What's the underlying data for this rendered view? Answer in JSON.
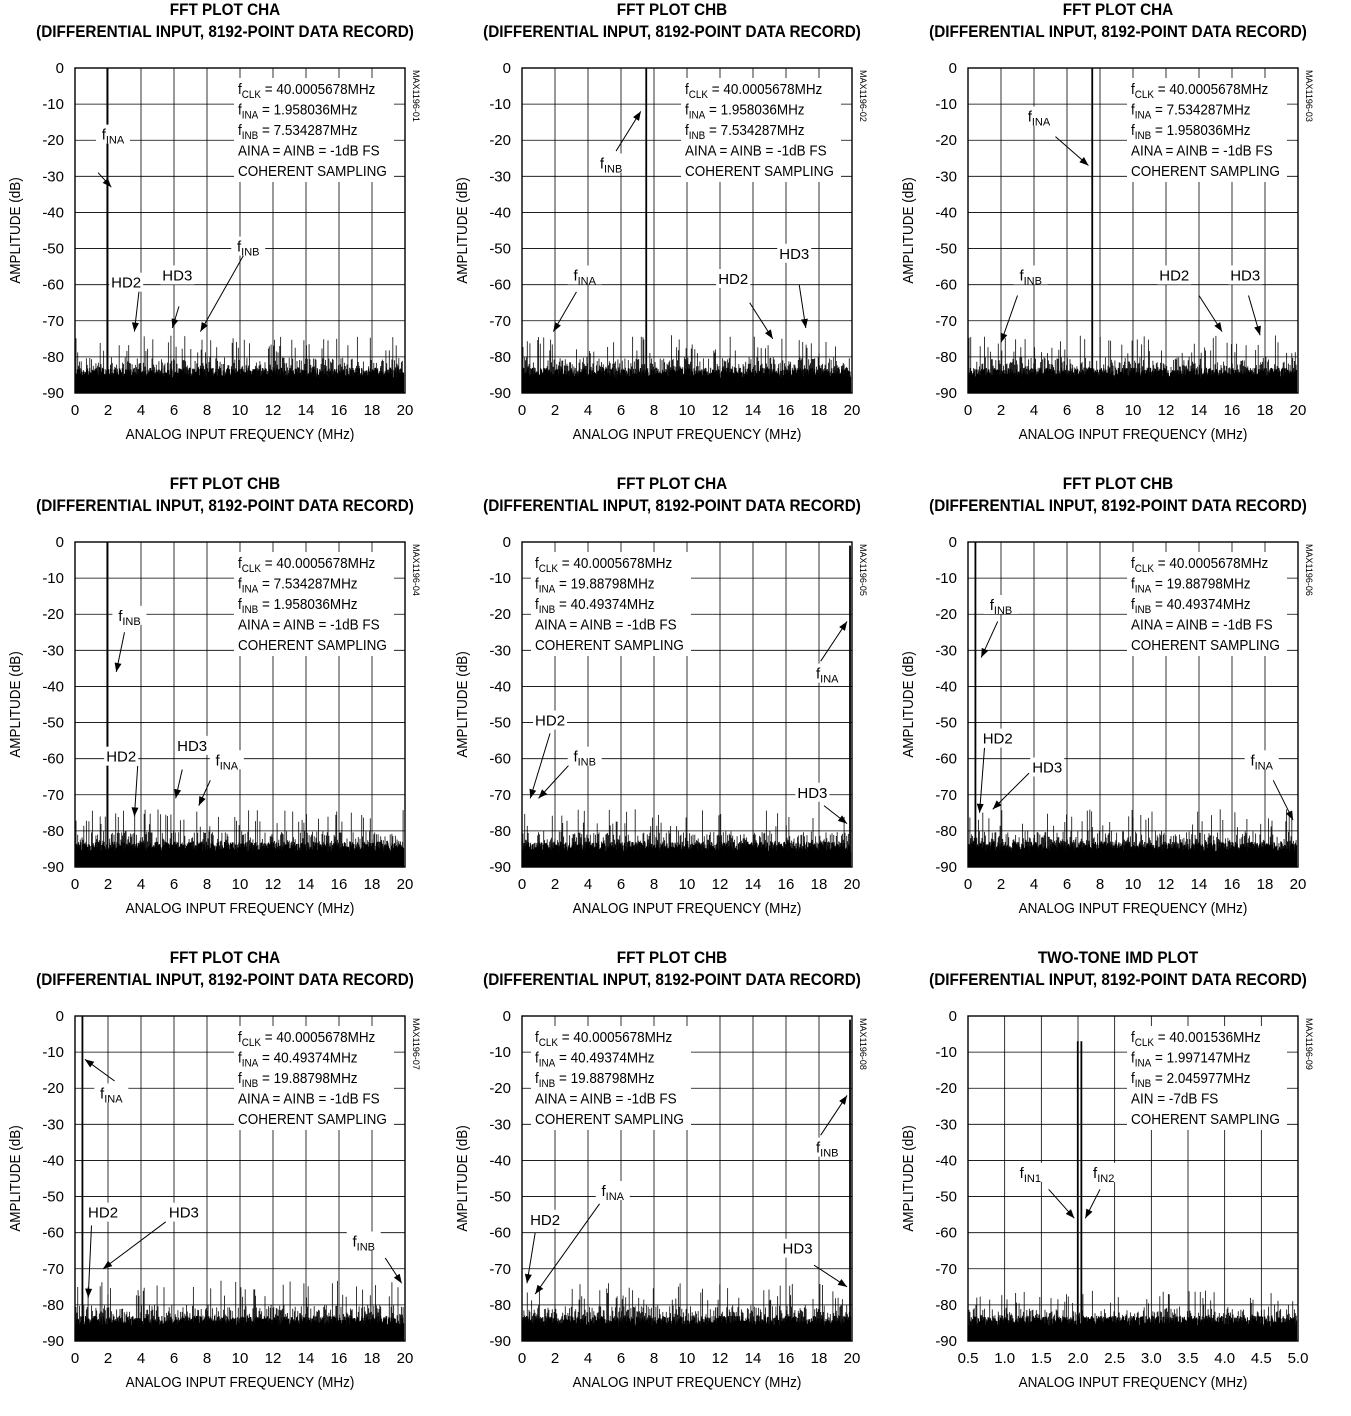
{
  "charts": [
    {
      "title1": "FFT PLOT CHA",
      "title2": "(DIFFERENTIAL INPUT, 8192-POINT DATA RECORD)",
      "ylabel": "AMPLITUDE (dB)",
      "xlabel": "ANALOG INPUT FREQUENCY (MHz)",
      "code": "MAX1196-01",
      "info": [
        [
          "f",
          "CLK",
          " = 40.0005678MHz"
        ],
        [
          "f",
          "INA",
          " = 1.958036MHz"
        ],
        [
          "f",
          "INB",
          " = 7.534287MHz"
        ],
        [
          "AINA = AINB = -1dB FS",
          "",
          ""
        ],
        [
          "COHERENT SAMPLING",
          "",
          ""
        ]
      ],
      "spikes": [
        {
          "x": 1.96,
          "y": 0
        }
      ],
      "floor": -84,
      "floor_peak": -76,
      "annotations": [
        {
          "text": "f",
          "sub": "INA",
          "lx": 2.3,
          "ly": -19,
          "ax": 1.4,
          "ay": -29,
          "tx": 2.2,
          "ty": -33
        },
        {
          "text": "HD2",
          "lx": 3.1,
          "ly": -60,
          "ax": 3.9,
          "ay": -61,
          "tx": 3.6,
          "ty": -73
        },
        {
          "text": "HD3",
          "lx": 6.2,
          "ly": -58,
          "ax": 6.3,
          "ay": -66,
          "tx": 5.9,
          "ty": -72
        },
        {
          "text": "f",
          "sub": "INB",
          "lx": 10.5,
          "ly": -50,
          "ax": 10.2,
          "ay": -52,
          "tx": 7.6,
          "ty": -73
        }
      ],
      "chart_data": {
        "type": "line",
        "xlim": [
          0,
          20
        ],
        "ylim": [
          -90,
          0
        ],
        "xticks": [
          "0",
          "2",
          "4",
          "6",
          "8",
          "10",
          "12",
          "14",
          "16",
          "18",
          "20"
        ],
        "yticks": [
          "0",
          "-10",
          "-20",
          "-30",
          "-40",
          "-50",
          "-60",
          "-70",
          "-80",
          "-90"
        ]
      }
    },
    {
      "title1": "FFT PLOT CHB",
      "title2": "(DIFFERENTIAL INPUT, 8192-POINT DATA RECORD)",
      "ylabel": "AMPLITUDE (dB)",
      "xlabel": "ANALOG INPUT FREQUENCY (MHz)",
      "code": "MAX1196-02",
      "info": [
        [
          "f",
          "CLK",
          " = 40.0005678MHz"
        ],
        [
          "f",
          "INA",
          " = 1.958036MHz"
        ],
        [
          "f",
          "INB",
          " = 7.534287MHz"
        ],
        [
          "AINA = AINB = -1dB FS",
          "",
          ""
        ],
        [
          "COHERENT SAMPLING",
          "",
          ""
        ]
      ],
      "spikes": [
        {
          "x": 7.53,
          "y": 0
        }
      ],
      "floor": -84,
      "floor_peak": -76,
      "annotations": [
        {
          "text": "f",
          "sub": "INB",
          "lx": 5.4,
          "ly": -27,
          "ax": 5.7,
          "ay": -23,
          "tx": 7.2,
          "ty": -12
        },
        {
          "text": "f",
          "sub": "INA",
          "lx": 3.8,
          "ly": -58,
          "ax": 3.3,
          "ay": -62,
          "tx": 1.9,
          "ty": -73
        },
        {
          "text": "HD2",
          "lx": 12.8,
          "ly": -59,
          "ax": 13.8,
          "ay": -65,
          "tx": 15.2,
          "ty": -75
        },
        {
          "text": "HD3",
          "lx": 16.5,
          "ly": -52,
          "ax": 16.8,
          "ay": -60,
          "tx": 17.2,
          "ty": -72
        }
      ],
      "chart_data": {
        "type": "line",
        "xlim": [
          0,
          20
        ],
        "ylim": [
          -90,
          0
        ],
        "xticks": [
          "0",
          "2",
          "4",
          "6",
          "8",
          "10",
          "12",
          "14",
          "16",
          "18",
          "20"
        ],
        "yticks": [
          "0",
          "-10",
          "-20",
          "-30",
          "-40",
          "-50",
          "-60",
          "-70",
          "-80",
          "-90"
        ]
      }
    },
    {
      "title1": "FFT PLOT CHA",
      "title2": "(DIFFERENTIAL INPUT, 8192-POINT DATA RECORD)",
      "ylabel": "AMPLITUDE (dB)",
      "xlabel": "ANALOG INPUT FREQUENCY (MHz)",
      "code": "MAX1196-03",
      "info": [
        [
          "f",
          "CLK",
          " = 40.0005678MHz"
        ],
        [
          "f",
          "INA",
          " = 7.534287MHz"
        ],
        [
          "f",
          "INB",
          " = 1.958036MHz"
        ],
        [
          "AINA = AINB = -1dB FS",
          "",
          ""
        ],
        [
          "COHERENT SAMPLING",
          "",
          ""
        ]
      ],
      "spikes": [
        {
          "x": 7.53,
          "y": 0
        }
      ],
      "floor": -84,
      "floor_peak": -76,
      "annotations": [
        {
          "text": "f",
          "sub": "INA",
          "lx": 4.3,
          "ly": -14,
          "ax": 5.3,
          "ay": -19,
          "tx": 7.3,
          "ty": -27
        },
        {
          "text": "f",
          "sub": "INB",
          "lx": 3.8,
          "ly": -58,
          "ax": 3.0,
          "ay": -63,
          "tx": 2.0,
          "ty": -76
        },
        {
          "text": "HD2",
          "lx": 12.5,
          "ly": -58,
          "ax": 14.0,
          "ay": -63,
          "tx": 15.4,
          "ty": -73
        },
        {
          "text": "HD3",
          "lx": 16.8,
          "ly": -58,
          "ax": 17.0,
          "ay": -63,
          "tx": 17.7,
          "ty": -74
        }
      ],
      "chart_data": {
        "type": "line",
        "xlim": [
          0,
          20
        ],
        "ylim": [
          -90,
          0
        ],
        "xticks": [
          "0",
          "2",
          "4",
          "6",
          "8",
          "10",
          "12",
          "14",
          "16",
          "18",
          "20"
        ],
        "yticks": [
          "0",
          "-10",
          "-20",
          "-30",
          "-40",
          "-50",
          "-60",
          "-70",
          "-80",
          "-90"
        ]
      }
    },
    {
      "title1": "FFT PLOT CHB",
      "title2": "(DIFFERENTIAL INPUT, 8192-POINT DATA RECORD)",
      "ylabel": "AMPLITUDE (dB)",
      "xlabel": "ANALOG INPUT FREQUENCY (MHz)",
      "code": "MAX1196-04",
      "info": [
        [
          "f",
          "CLK",
          " = 40.0005678MHz"
        ],
        [
          "f",
          "INA",
          " = 7.534287MHz"
        ],
        [
          "f",
          "INB",
          " = 1.958036MHz"
        ],
        [
          "AINA = AINB = -1dB FS",
          "",
          ""
        ],
        [
          "COHERENT SAMPLING",
          "",
          ""
        ]
      ],
      "spikes": [
        {
          "x": 1.96,
          "y": 0
        }
      ],
      "floor": -84,
      "floor_peak": -76,
      "annotations": [
        {
          "text": "f",
          "sub": "INB",
          "lx": 3.3,
          "ly": -21,
          "ax": 3.0,
          "ay": -25,
          "tx": 2.5,
          "ty": -36
        },
        {
          "text": "HD2",
          "lx": 2.8,
          "ly": -60,
          "ax": 3.8,
          "ay": -62,
          "tx": 3.6,
          "ty": -76
        },
        {
          "text": "HD3",
          "lx": 7.1,
          "ly": -57,
          "ax": 6.5,
          "ay": -63,
          "tx": 6.1,
          "ty": -71
        },
        {
          "text": "f",
          "sub": "INA",
          "lx": 9.2,
          "ly": -61,
          "ax": 8.2,
          "ay": -66,
          "tx": 7.5,
          "ty": -73
        }
      ],
      "chart_data": {
        "type": "line",
        "xlim": [
          0,
          20
        ],
        "ylim": [
          -90,
          0
        ],
        "xticks": [
          "0",
          "2",
          "4",
          "6",
          "8",
          "10",
          "12",
          "14",
          "16",
          "18",
          "20"
        ],
        "yticks": [
          "0",
          "-10",
          "-20",
          "-30",
          "-40",
          "-50",
          "-60",
          "-70",
          "-80",
          "-90"
        ]
      }
    },
    {
      "title1": "FFT PLOT CHA",
      "title2": "(DIFFERENTIAL INPUT, 8192-POINT DATA RECORD)",
      "ylabel": "AMPLITUDE (dB)",
      "xlabel": "ANALOG INPUT FREQUENCY (MHz)",
      "code": "MAX1196-05",
      "info": [
        [
          "f",
          "CLK",
          " = 40.0005678MHz"
        ],
        [
          "f",
          "INA",
          " = 19.88798MHz"
        ],
        [
          "f",
          "INB",
          " = 40.49374MHz"
        ],
        [
          "AINA = AINB = -1dB FS",
          "",
          ""
        ],
        [
          "COHERENT SAMPLING",
          "",
          ""
        ]
      ],
      "spikes": [
        {
          "x": 19.88,
          "y": -1
        }
      ],
      "floor": -84,
      "floor_peak": -76,
      "infoLeft": true,
      "annotations": [
        {
          "text": "f",
          "sub": "INA",
          "lx": 18.5,
          "ly": -37,
          "ax": 18.1,
          "ay": -33,
          "tx": 19.7,
          "ty": -22
        },
        {
          "text": "HD2",
          "lx": 1.7,
          "ly": -50,
          "ax": 1.7,
          "ay": -53,
          "tx": 0.5,
          "ty": -71
        },
        {
          "text": "f",
          "sub": "INB",
          "lx": 3.8,
          "ly": -60,
          "ax": 3.0,
          "ay": -61,
          "tx": 1.0,
          "ty": -71
        },
        {
          "text": "HD3",
          "lx": 17.6,
          "ly": -70,
          "ax": 18.3,
          "ay": -73,
          "tx": 19.7,
          "ty": -78
        }
      ],
      "chart_data": {
        "type": "line",
        "xlim": [
          0,
          20
        ],
        "ylim": [
          -90,
          0
        ],
        "xticks": [
          "0",
          "2",
          "4",
          "6",
          "8",
          "10",
          "12",
          "14",
          "16",
          "18",
          "20"
        ],
        "yticks": [
          "0",
          "-10",
          "-20",
          "-30",
          "-40",
          "-50",
          "-60",
          "-70",
          "-80",
          "-90"
        ]
      }
    },
    {
      "title1": "FFT PLOT CHB",
      "title2": "(DIFFERENTIAL INPUT, 8192-POINT DATA RECORD)",
      "ylabel": "AMPLITUDE (dB)",
      "xlabel": "ANALOG INPUT FREQUENCY (MHz)",
      "code": "MAX1196-06",
      "info": [
        [
          "f",
          "CLK",
          " = 40.0005678MHz"
        ],
        [
          "f",
          "INA",
          " = 19.88798MHz"
        ],
        [
          "f",
          "INB",
          " = 40.49374MHz"
        ],
        [
          "AINA = AINB = -1dB FS",
          "",
          ""
        ],
        [
          "COHERENT SAMPLING",
          "",
          ""
        ]
      ],
      "spikes": [
        {
          "x": 0.45,
          "y": 0
        }
      ],
      "floor": -84,
      "floor_peak": -76,
      "annotations": [
        {
          "text": "f",
          "sub": "INB",
          "lx": 2.0,
          "ly": -18,
          "ax": 1.8,
          "ay": -22,
          "tx": 0.8,
          "ty": -32
        },
        {
          "text": "HD2",
          "lx": 1.8,
          "ly": -55,
          "ax": 1.0,
          "ay": -57,
          "tx": 0.7,
          "ty": -75
        },
        {
          "text": "HD3",
          "lx": 4.8,
          "ly": -63,
          "ax": 3.7,
          "ay": -64,
          "tx": 1.5,
          "ty": -74
        },
        {
          "text": "f",
          "sub": "INA",
          "lx": 17.8,
          "ly": -61,
          "ax": 18.5,
          "ay": -66,
          "tx": 19.7,
          "ty": -77
        }
      ],
      "chart_data": {
        "type": "line",
        "xlim": [
          0,
          20
        ],
        "ylim": [
          -90,
          0
        ],
        "xticks": [
          "0",
          "2",
          "4",
          "6",
          "8",
          "10",
          "12",
          "14",
          "16",
          "18",
          "20"
        ],
        "yticks": [
          "0",
          "-10",
          "-20",
          "-30",
          "-40",
          "-50",
          "-60",
          "-70",
          "-80",
          "-90"
        ]
      }
    },
    {
      "title1": "FFT PLOT CHA",
      "title2": "(DIFFERENTIAL INPUT, 8192-POINT DATA RECORD)",
      "ylabel": "AMPLITUDE (dB)",
      "xlabel": "ANALOG INPUT FREQUENCY (MHz)",
      "code": "MAX1196-07",
      "info": [
        [
          "f",
          "CLK",
          " = 40.0005678MHz"
        ],
        [
          "f",
          "INA",
          " = 40.49374MHz"
        ],
        [
          "f",
          "INB",
          " = 19.88798MHz"
        ],
        [
          "AINA = AINB = -1dB FS",
          "",
          ""
        ],
        [
          "COHERENT SAMPLING",
          "",
          ""
        ]
      ],
      "spikes": [
        {
          "x": 0.45,
          "y": 0
        }
      ],
      "floor": -84,
      "floor_peak": -75,
      "annotations": [
        {
          "text": "f",
          "sub": "INA",
          "lx": 2.2,
          "ly": -22,
          "ax": 2.4,
          "ay": -18,
          "tx": 0.6,
          "ty": -12
        },
        {
          "text": "HD2",
          "lx": 1.7,
          "ly": -55,
          "ax": 1.0,
          "ay": -58,
          "tx": 0.8,
          "ty": -78
        },
        {
          "text": "HD3",
          "lx": 6.6,
          "ly": -55,
          "ax": 5.5,
          "ay": -57,
          "tx": 1.7,
          "ty": -70
        },
        {
          "text": "f",
          "sub": "INB",
          "lx": 17.5,
          "ly": -63,
          "ax": 18.8,
          "ay": -67,
          "tx": 19.8,
          "ty": -74
        }
      ],
      "chart_data": {
        "type": "line",
        "xlim": [
          0,
          20
        ],
        "ylim": [
          -90,
          0
        ],
        "xticks": [
          "0",
          "2",
          "4",
          "6",
          "8",
          "10",
          "12",
          "14",
          "16",
          "18",
          "20"
        ],
        "yticks": [
          "0",
          "-10",
          "-20",
          "-30",
          "-40",
          "-50",
          "-60",
          "-70",
          "-80",
          "-90"
        ]
      }
    },
    {
      "title1": "FFT PLOT CHB",
      "title2": "(DIFFERENTIAL INPUT, 8192-POINT DATA RECORD)",
      "ylabel": "AMPLITUDE (dB)",
      "xlabel": "ANALOG INPUT FREQUENCY (MHz)",
      "code": "MAX1196-08",
      "info": [
        [
          "f",
          "CLK",
          " = 40.0005678MHz"
        ],
        [
          "f",
          "INA",
          " = 40.49374MHz"
        ],
        [
          "f",
          "INB",
          " = 19.88798MHz"
        ],
        [
          "AINA = AINB = -1dB FS",
          "",
          ""
        ],
        [
          "COHERENT SAMPLING",
          "",
          ""
        ]
      ],
      "spikes": [
        {
          "x": 19.88,
          "y": -1
        }
      ],
      "floor": -84,
      "floor_peak": -76,
      "infoLeft": true,
      "annotations": [
        {
          "text": "f",
          "sub": "INB",
          "lx": 18.5,
          "ly": -37,
          "ax": 18.1,
          "ay": -33,
          "tx": 19.7,
          "ty": -22
        },
        {
          "text": "f",
          "sub": "INA",
          "lx": 5.5,
          "ly": -49,
          "ax": 4.7,
          "ay": -52,
          "tx": 0.8,
          "ty": -77
        },
        {
          "text": "HD2",
          "lx": 1.4,
          "ly": -57,
          "ax": 0.8,
          "ay": -60,
          "tx": 0.3,
          "ty": -74
        },
        {
          "text": "HD3",
          "lx": 16.7,
          "ly": -65,
          "ax": 17.7,
          "ay": -69,
          "tx": 19.7,
          "ty": -75
        }
      ],
      "chart_data": {
        "type": "line",
        "xlim": [
          0,
          20
        ],
        "ylim": [
          -90,
          0
        ],
        "xticks": [
          "0",
          "2",
          "4",
          "6",
          "8",
          "10",
          "12",
          "14",
          "16",
          "18",
          "20"
        ],
        "yticks": [
          "0",
          "-10",
          "-20",
          "-30",
          "-40",
          "-50",
          "-60",
          "-70",
          "-80",
          "-90"
        ]
      }
    },
    {
      "title1": "TWO-TONE IMD PLOT",
      "title2": "(DIFFERENTIAL INPUT, 8192-POINT DATA RECORD)",
      "ylabel": "AMPLITUDE (dB)",
      "xlabel": "ANALOG INPUT FREQUENCY (MHz)",
      "code": "MAX1196-09",
      "info": [
        [
          "f",
          "CLK",
          " = 40.001536MHz"
        ],
        [
          "f",
          "INA",
          " = 1.997147MHz"
        ],
        [
          "f",
          "INB",
          " = 2.045977MHz"
        ],
        [
          "AIN = -7dB FS",
          "",
          ""
        ],
        [
          "COHERENT SAMPLING",
          "",
          ""
        ]
      ],
      "spikes": [
        {
          "x": 1.997,
          "y": -7
        },
        {
          "x": 2.046,
          "y": -7
        }
      ],
      "floor": -85,
      "floor_peak": -78,
      "annotations": [
        {
          "text": "f",
          "sub": "IN1",
          "lx": 1.35,
          "ly": -44,
          "ax": 1.6,
          "ay": -48,
          "tx": 1.95,
          "ty": -56
        },
        {
          "text": "f",
          "sub": "IN2",
          "lx": 2.35,
          "ly": -44,
          "ax": 2.3,
          "ay": -48,
          "tx": 2.1,
          "ty": -56
        }
      ],
      "chart_data": {
        "type": "line",
        "xlim": [
          0.5,
          5.0
        ],
        "ylim": [
          -90,
          0
        ],
        "xticks": [
          "0.5",
          "1.0",
          "1.5",
          "2.0",
          "2.5",
          "3.0",
          "3.5",
          "4.0",
          "4.5",
          "5.0"
        ],
        "yticks": [
          "0",
          "-10",
          "-20",
          "-30",
          "-40",
          "-50",
          "-60",
          "-70",
          "-80",
          "-90"
        ]
      }
    }
  ]
}
